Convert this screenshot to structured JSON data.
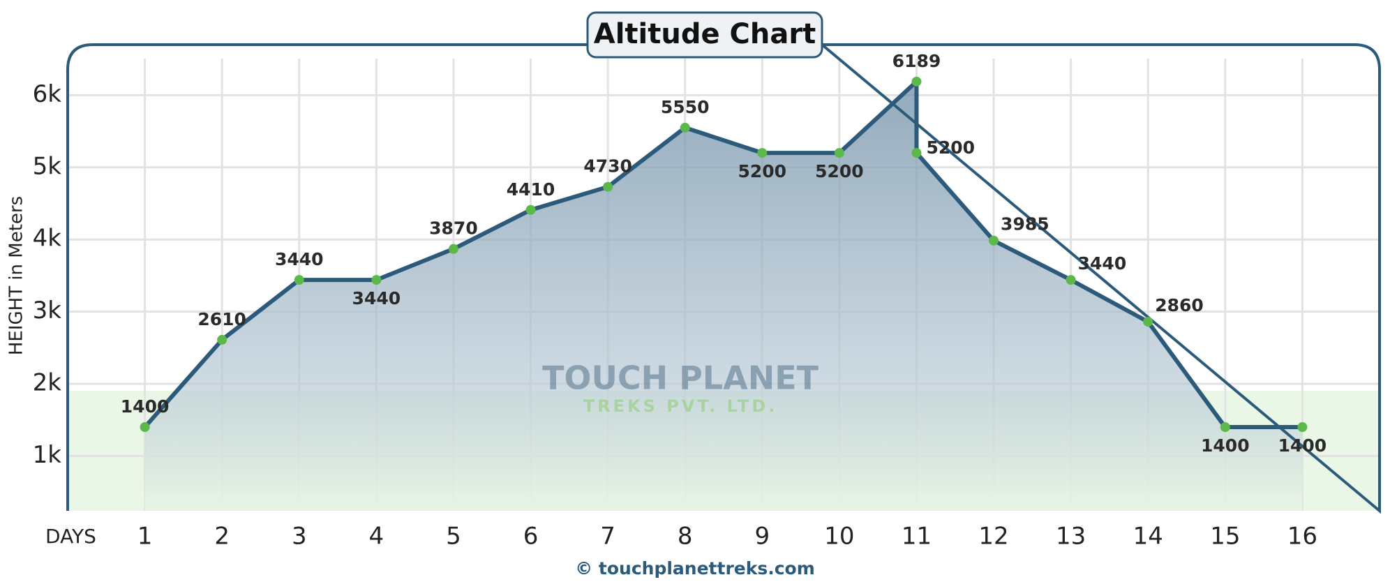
{
  "chart_data": {
    "type": "line",
    "title": "Altitude Chart",
    "x_label": "DAYS",
    "y_label": "HEIGHT in Meters",
    "watermark": [
      "TOUCH PLANET",
      "TREKS PVT. LTD."
    ],
    "footer": "© touchplanettreks.com",
    "x": [
      1,
      2,
      3,
      4,
      5,
      6,
      7,
      8,
      9,
      10,
      11,
      11,
      12,
      13,
      14,
      15,
      16
    ],
    "series": [
      {
        "name": "Altitude",
        "color": "#2b5a7a",
        "values": [
          1400,
          2610,
          3440,
          3440,
          3870,
          4410,
          4730,
          5550,
          5200,
          5200,
          6189,
          5200,
          3985,
          3440,
          2860,
          1400,
          1400
        ]
      }
    ],
    "xlim": [
      0,
      17
    ],
    "xticks": [
      1,
      2,
      3,
      4,
      5,
      6,
      7,
      8,
      9,
      10,
      11,
      12,
      13,
      14,
      15,
      16
    ],
    "ylim": [
      240,
      6700
    ],
    "yticks": [
      {
        "value": 1000,
        "label": "1k"
      },
      {
        "value": 2000,
        "label": "2k"
      },
      {
        "value": 3000,
        "label": "3k"
      },
      {
        "value": 4000,
        "label": "4k"
      },
      {
        "value": 5000,
        "label": "5k"
      },
      {
        "value": 6000,
        "label": "6k"
      }
    ],
    "grid": true,
    "point_color": "#5cb84a"
  }
}
